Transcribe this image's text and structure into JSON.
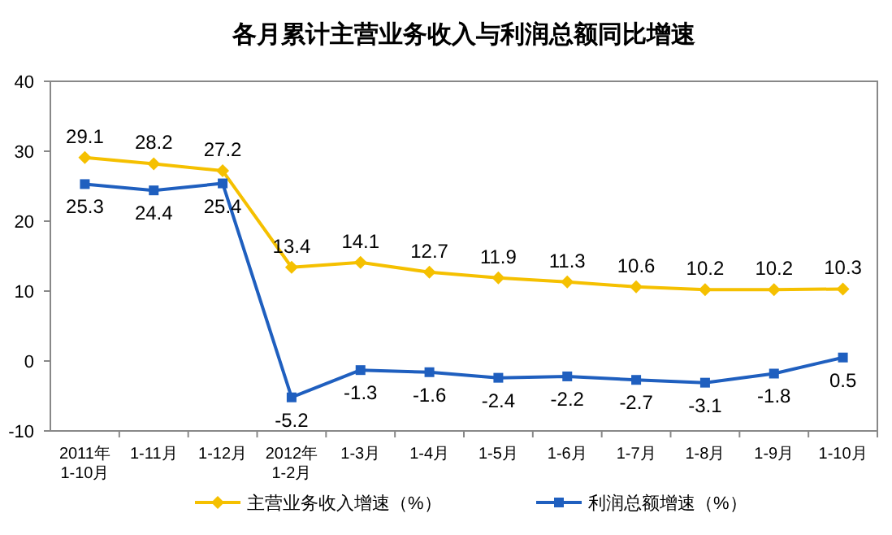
{
  "chart_data": {
    "type": "line",
    "title": "各月累计主营业务收入与利润总额同比增速",
    "categories": [
      "2011年\n1-10月",
      "1-11月",
      "1-12月",
      "2012年\n1-2月",
      "1-3月",
      "1-4月",
      "1-5月",
      "1-6月",
      "1-7月",
      "1-8月",
      "1-9月",
      "1-10月"
    ],
    "series": [
      {
        "name": "主营业务收入增速（%）",
        "color": "#f5c000",
        "marker": "diamond",
        "values": [
          29.1,
          28.2,
          27.2,
          13.4,
          14.1,
          12.7,
          11.9,
          11.3,
          10.6,
          10.2,
          10.2,
          10.3
        ]
      },
      {
        "name": "利润总额增速（%）",
        "color": "#1f5fbf",
        "marker": "square",
        "values": [
          25.3,
          24.4,
          25.4,
          -5.2,
          -1.3,
          -1.6,
          -2.4,
          -2.2,
          -2.7,
          -3.1,
          -1.8,
          0.5
        ]
      }
    ],
    "ylim": [
      -10,
      40
    ],
    "yticks": [
      -10,
      0,
      10,
      20,
      30,
      40
    ],
    "data_labels": true,
    "legend": "bottom",
    "grid": false
  }
}
